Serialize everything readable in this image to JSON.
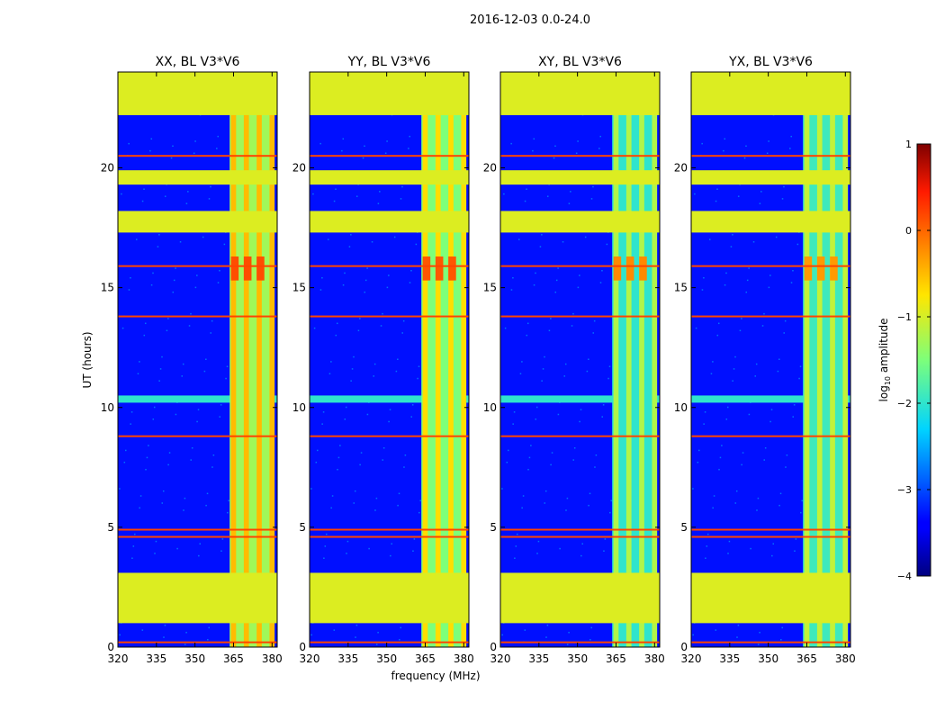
{
  "figure_title": "2016-12-03 0.0-24.0",
  "chart_data": {
    "type": "heatmap",
    "suptitle": "2016-12-03 0.0-24.0",
    "xlabel": "frequency (MHz)",
    "ylabel": "UT (hours)",
    "xlim": [
      320,
      382
    ],
    "ylim": [
      0,
      24
    ],
    "x_ticks": [
      320,
      335,
      350,
      365,
      380
    ],
    "y_ticks": [
      0,
      5,
      10,
      15,
      20
    ],
    "colorbar": {
      "label_prefix": "log",
      "label_sub": "10",
      "label_suffix": " amplitude",
      "range": [
        -4,
        1
      ],
      "ticks": [
        1,
        0,
        -1,
        -2,
        -3,
        -4
      ],
      "tick_labels": [
        "1",
        "0",
        "−1",
        "−2",
        "−3",
        "−4"
      ],
      "colormap": "jet"
    },
    "panels": [
      {
        "title": "XX, BL V3*V6",
        "band_level": -0.5,
        "hot_level": 0.15
      },
      {
        "title": "YY, BL V3*V6",
        "band_level": -0.7,
        "hot_level": 0.1
      },
      {
        "title": "XY, BL V3*V6",
        "band_level": -1.2,
        "hot_level": -0.2
      },
      {
        "title": "YX, BL V3*V6",
        "band_level": -1.1,
        "hot_level": -0.3
      }
    ],
    "background_level": -3.3,
    "flagged_value_level": -0.95,
    "flagged_time_ranges_hours": [
      [
        1.0,
        3.1
      ],
      [
        17.3,
        18.2
      ],
      [
        19.3,
        19.9
      ],
      [
        22.2,
        24.0
      ]
    ],
    "noisy_time_band_hours": [
      10.2,
      10.5
    ],
    "rfi_band_mhz": [
      363.5,
      380.5
    ],
    "hot_time_range_hours": [
      15.3,
      16.3
    ],
    "red_line_times_hours": [
      0.2,
      4.6,
      4.9,
      8.8,
      13.8,
      15.9,
      20.5
    ]
  }
}
